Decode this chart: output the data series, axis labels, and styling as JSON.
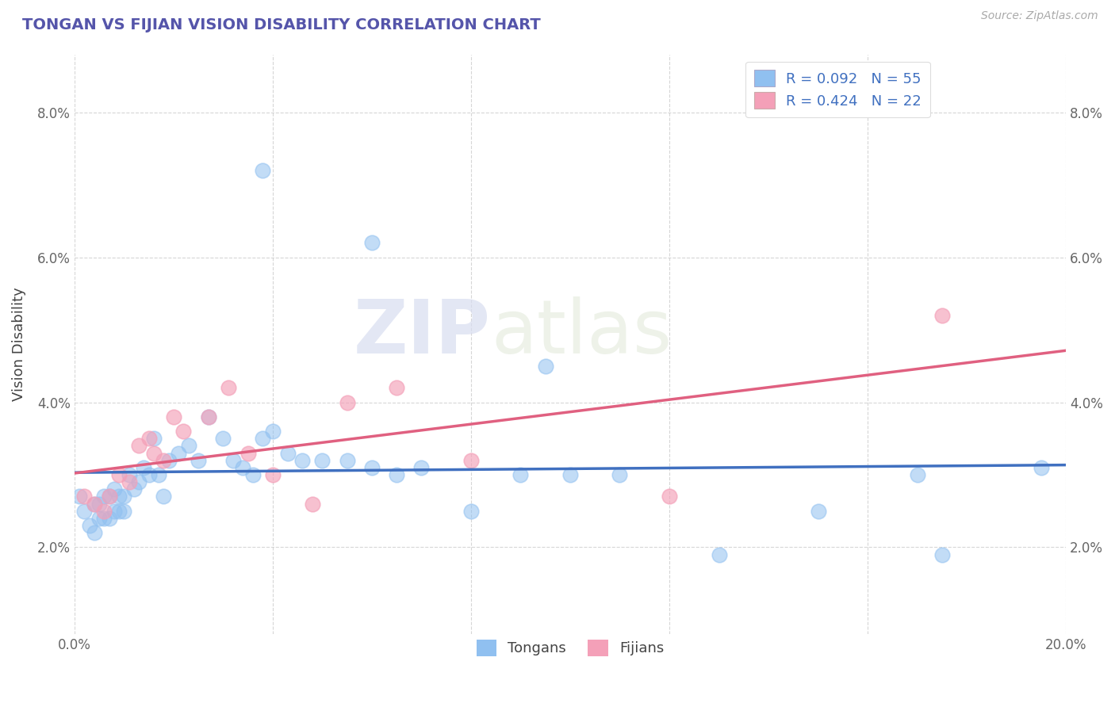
{
  "title": "TONGAN VS FIJIAN VISION DISABILITY CORRELATION CHART",
  "source": "Source: ZipAtlas.com",
  "ylabel": "Vision Disability",
  "xlim": [
    0.0,
    0.2
  ],
  "ylim": [
    0.008,
    0.088
  ],
  "x_ticks": [
    0.0,
    0.04,
    0.08,
    0.12,
    0.16,
    0.2
  ],
  "x_tick_labels": [
    "0.0%",
    "",
    "",
    "",
    "",
    "20.0%"
  ],
  "y_ticks": [
    0.02,
    0.04,
    0.06,
    0.08
  ],
  "y_tick_labels": [
    "2.0%",
    "4.0%",
    "6.0%",
    "8.0%"
  ],
  "background_color": "#ffffff",
  "tongan_color": "#90c0f0",
  "fijian_color": "#f4a0b8",
  "tongan_line_color": "#4070c0",
  "fijian_line_color": "#e06080",
  "title_color": "#5555aa",
  "watermark_color": "#ddddee",
  "legend_label1": "R = 0.092   N = 55",
  "legend_label2": "R = 0.424   N = 22",
  "bottom_label1": "Tongans",
  "bottom_label2": "Fijians",
  "tx": [
    0.001,
    0.002,
    0.003,
    0.004,
    0.004,
    0.005,
    0.005,
    0.006,
    0.006,
    0.007,
    0.007,
    0.008,
    0.008,
    0.009,
    0.009,
    0.01,
    0.01,
    0.011,
    0.012,
    0.013,
    0.014,
    0.015,
    0.016,
    0.017,
    0.018,
    0.019,
    0.021,
    0.023,
    0.025,
    0.027,
    0.03,
    0.032,
    0.034,
    0.036,
    0.038,
    0.04,
    0.043,
    0.046,
    0.05,
    0.055,
    0.06,
    0.065,
    0.07,
    0.08,
    0.09,
    0.1,
    0.11,
    0.13,
    0.15,
    0.17,
    0.038,
    0.06,
    0.095,
    0.175,
    0.195
  ],
  "ty": [
    0.027,
    0.025,
    0.023,
    0.026,
    0.022,
    0.026,
    0.024,
    0.027,
    0.024,
    0.027,
    0.024,
    0.028,
    0.025,
    0.027,
    0.025,
    0.027,
    0.025,
    0.03,
    0.028,
    0.029,
    0.031,
    0.03,
    0.035,
    0.03,
    0.027,
    0.032,
    0.033,
    0.034,
    0.032,
    0.038,
    0.035,
    0.032,
    0.031,
    0.03,
    0.035,
    0.036,
    0.033,
    0.032,
    0.032,
    0.032,
    0.031,
    0.03,
    0.031,
    0.025,
    0.03,
    0.03,
    0.03,
    0.019,
    0.025,
    0.03,
    0.072,
    0.062,
    0.045,
    0.019,
    0.031
  ],
  "fx": [
    0.002,
    0.004,
    0.006,
    0.007,
    0.009,
    0.011,
    0.013,
    0.015,
    0.016,
    0.018,
    0.02,
    0.022,
    0.027,
    0.031,
    0.035,
    0.04,
    0.048,
    0.055,
    0.065,
    0.08,
    0.12,
    0.175
  ],
  "fy": [
    0.027,
    0.026,
    0.025,
    0.027,
    0.03,
    0.029,
    0.034,
    0.035,
    0.033,
    0.032,
    0.038,
    0.036,
    0.038,
    0.042,
    0.033,
    0.03,
    0.026,
    0.04,
    0.042,
    0.032,
    0.027,
    0.052
  ]
}
